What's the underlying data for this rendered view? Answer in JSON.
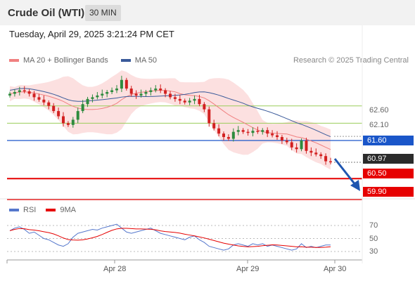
{
  "header": {
    "title": "Crude Oil (WTI)",
    "interval": "30 MIN"
  },
  "datetime": "Tuesday, April 29, 2025 3:21:24 PM CET",
  "legend": {
    "items": [
      {
        "label": "MA 20 + Bollinger Bands",
        "color": "#f08080"
      },
      {
        "label": "MA 50",
        "color": "#3a5a9a"
      }
    ],
    "copyright": "Research © 2025 Trading Central"
  },
  "colors": {
    "up": "#2e8b3e",
    "down": "#d22020",
    "resistance": "#9acd5a",
    "support": "#e60000",
    "pivot": "#1a56c9",
    "band": "#fbd5d5"
  },
  "chart_data": {
    "type": "candlestick",
    "instrument": "Crude Oil (WTI)",
    "interval": "30 MIN",
    "x_ticks": [
      "Apr 28",
      "Apr 29",
      "Apr 30"
    ],
    "price_range": [
      59.5,
      63.5
    ],
    "current_price": 60.97,
    "levels": [
      {
        "value": "62.60",
        "type": "resistance",
        "style": "plain"
      },
      {
        "value": "62.10",
        "type": "resistance",
        "style": "plain"
      },
      {
        "value": "61.60",
        "type": "pivot",
        "style": "blue"
      },
      {
        "value": "60.97",
        "type": "last",
        "style": "black"
      },
      {
        "value": "60.50",
        "type": "support",
        "style": "red"
      },
      {
        "value": "59.90",
        "type": "support",
        "style": "red"
      }
    ],
    "close_series": [
      62.95,
      63.0,
      63.05,
      63.02,
      62.95,
      62.85,
      62.78,
      62.7,
      62.6,
      62.45,
      62.3,
      62.1,
      62.05,
      62.2,
      62.45,
      62.65,
      62.8,
      62.85,
      62.9,
      62.95,
      63.0,
      63.05,
      63.1,
      63.35,
      63.1,
      62.95,
      62.9,
      62.95,
      63.0,
      63.05,
      63.1,
      63.05,
      62.95,
      62.85,
      62.8,
      62.75,
      62.7,
      62.75,
      62.8,
      62.65,
      62.5,
      62.1,
      61.95,
      61.8,
      61.7,
      61.65,
      61.85,
      61.9,
      61.85,
      61.82,
      61.88,
      61.85,
      61.9,
      61.8,
      61.75,
      61.7,
      61.6,
      61.55,
      61.4,
      61.35,
      61.6,
      61.3,
      61.25,
      61.2,
      61.15,
      61.0,
      60.97
    ],
    "rsi": {
      "ticks": [
        "70",
        "50",
        "30"
      ],
      "legend": [
        {
          "label": "RSI",
          "color": "#5577cc"
        },
        {
          "label": "9MA",
          "color": "#e60000"
        }
      ],
      "values": [
        62,
        66,
        68,
        64,
        58,
        60,
        55,
        50,
        48,
        44,
        40,
        38,
        42,
        52,
        58,
        60,
        62,
        64,
        63,
        66,
        68,
        70,
        72,
        66,
        60,
        58,
        60,
        62,
        64,
        66,
        62,
        58,
        56,
        54,
        52,
        50,
        48,
        52,
        54,
        48,
        44,
        38,
        36,
        34,
        32,
        34,
        40,
        42,
        40,
        38,
        42,
        40,
        42,
        38,
        40,
        38,
        36,
        34,
        32,
        34,
        42,
        36,
        38,
        36,
        38,
        40,
        40
      ]
    }
  }
}
